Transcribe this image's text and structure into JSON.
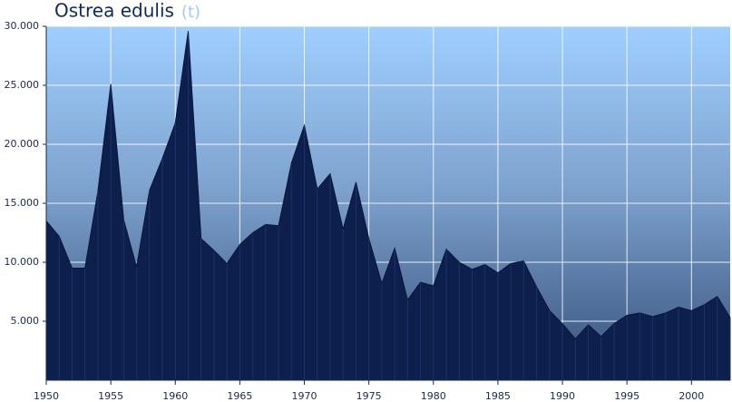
{
  "chart_data": {
    "type": "area",
    "title": "Ostrea edulis",
    "unit": "(t)",
    "x": [
      1950,
      1951,
      1952,
      1953,
      1954,
      1955,
      1956,
      1957,
      1958,
      1959,
      1960,
      1961,
      1962,
      1963,
      1964,
      1965,
      1966,
      1967,
      1968,
      1969,
      1970,
      1971,
      1972,
      1973,
      1974,
      1975,
      1976,
      1977,
      1978,
      1979,
      1980,
      1981,
      1982,
      1983,
      1984,
      1985,
      1986,
      1987,
      1988,
      1989,
      1990,
      1991,
      1992,
      1993,
      1994,
      1995,
      1996,
      1997,
      1998,
      1999,
      2000,
      2001,
      2002,
      2003
    ],
    "series": [
      {
        "color": "#0d1f4d",
        "values": [
          13500,
          12200,
          9500,
          9500,
          16000,
          25100,
          13600,
          9600,
          16100,
          18800,
          21800,
          29600,
          12000,
          11000,
          9900,
          11500,
          12500,
          13200,
          13100,
          18400,
          21600,
          16200,
          17500,
          12800,
          16800,
          12000,
          8200,
          11200,
          6800,
          8300,
          8000,
          11100,
          10000,
          9400,
          9800,
          9100,
          9900,
          10100,
          7900,
          5900,
          4800,
          3500,
          4700,
          3700,
          4800,
          5500,
          5700,
          5400,
          5700,
          6200,
          5900,
          6400,
          7100,
          5300
        ]
      }
    ],
    "xlim": [
      1950,
      2003
    ],
    "xticks": [
      1950,
      1955,
      1960,
      1965,
      1970,
      1975,
      1980,
      1985,
      1990,
      1995,
      2000
    ],
    "ylim": [
      0,
      30000
    ],
    "yticks": [
      {
        "value": 5000,
        "label": "5.000"
      },
      {
        "value": 10000,
        "label": "10.000"
      },
      {
        "value": 15000,
        "label": "15.000"
      },
      {
        "value": 20000,
        "label": "20.000"
      },
      {
        "value": 25000,
        "label": "25.000"
      },
      {
        "value": 30000,
        "label": "30.000"
      }
    ],
    "grid": true
  }
}
